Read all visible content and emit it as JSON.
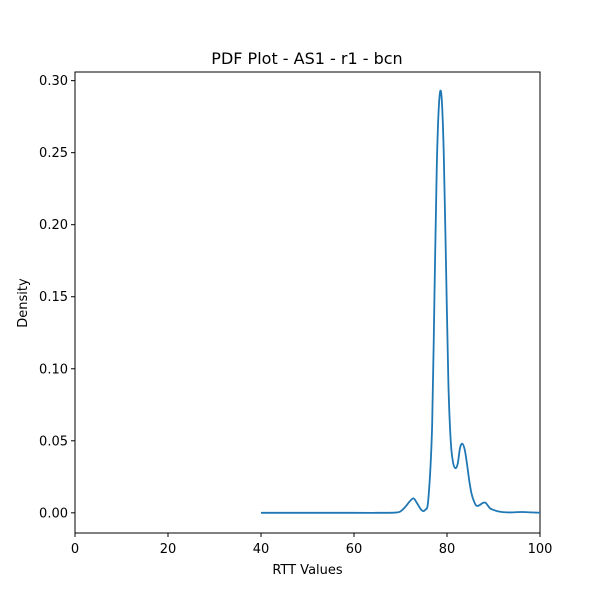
{
  "chart_data": {
    "type": "line",
    "title": "PDF Plot - AS1 - r1 - bcn",
    "xlabel": "RTT Values",
    "ylabel": "Density",
    "xlim": [
      0,
      100
    ],
    "ylim": [
      -0.014,
      0.306
    ],
    "xticks": [
      0,
      20,
      40,
      60,
      80,
      100
    ],
    "yticks": [
      0.0,
      0.05,
      0.1,
      0.15,
      0.2,
      0.25,
      0.3
    ],
    "xtick_labels": [
      "0",
      "20",
      "40",
      "60",
      "80",
      "100"
    ],
    "ytick_labels": [
      "0.00",
      "0.05",
      "0.10",
      "0.15",
      "0.20",
      "0.25",
      "0.30"
    ],
    "grid": false,
    "series": [
      {
        "color": "#1f77b4",
        "x": [
          40,
          50,
          60,
          65,
          69,
          70,
          71,
          72,
          72.8,
          73.5,
          74.5,
          75.3,
          76,
          76.8,
          77.3,
          77.8,
          78.3,
          78.8,
          79.3,
          79.8,
          80.3,
          80.8,
          81.3,
          81.8,
          82.3,
          82.8,
          83.3,
          83.8,
          84.3,
          84.8,
          85.3,
          85.8,
          86.3,
          86.8,
          87.3,
          87.8,
          88.3,
          88.8,
          89.3,
          90,
          91,
          92,
          93,
          94,
          95,
          96,
          97,
          98,
          99,
          100
        ],
        "y": [
          0.0,
          0.0,
          0.0,
          0.0,
          0.0002,
          0.001,
          0.004,
          0.008,
          0.01,
          0.007,
          0.002,
          0.002,
          0.01,
          0.06,
          0.15,
          0.24,
          0.285,
          0.29,
          0.25,
          0.17,
          0.09,
          0.05,
          0.035,
          0.031,
          0.034,
          0.045,
          0.048,
          0.044,
          0.034,
          0.022,
          0.013,
          0.008,
          0.005,
          0.005,
          0.006,
          0.007,
          0.007,
          0.005,
          0.003,
          0.002,
          0.001,
          0.0005,
          0.0003,
          0.0003,
          0.0005,
          0.0006,
          0.0005,
          0.0003,
          0.0002,
          0.0001
        ]
      }
    ]
  }
}
